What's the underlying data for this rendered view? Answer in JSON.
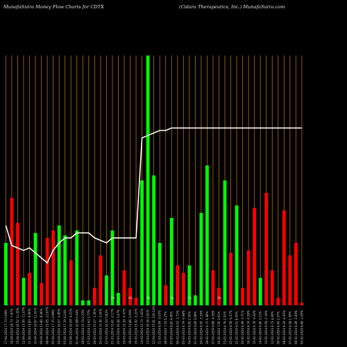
{
  "chart_data": {
    "type": "bar",
    "title_left": "MunafaSutra  Money Flow  Charts for CDTX",
    "title_right": "(Cidara Therapeutics, Inc.) MunafaSutra.com",
    "colors": {
      "up": "#00ff00",
      "down": "#ff0000",
      "grid": "#b8701a",
      "line": "#ffffff",
      "background": "#000000"
    },
    "grid": true,
    "ylim": [
      0,
      1
    ],
    "categories": [
      "17-04-2024 17.73 0.68%",
      "16-04-2024 18.73 -7.87%",
      "15-04-2024 16.52 11.35%",
      "12-04-2024 13.45 -11.97%",
      "11-04-2024 14.83 -6.90%",
      "10-04-2024 16.87 11.61%",
      "09-04-2024 13.80 -8.46%",
      "08-04-2024 15.05 -12.67%",
      "05-04-2024 17.15 3.98%",
      "04-04-2024 16.07 -5.85%",
      "03-04-2024 17.19 4.24%",
      "02-04-2024 16.09 -4.01%",
      "01-04-2024 16.88 6.44%",
      "28-03-2024 15.74 0.70%",
      "27-03-2024 15.63 3.77%",
      "26-03-2024 15.07 -1.90%",
      "25-03-2024 15.36 -3.00%",
      "22-03-2024 16.54 5.82%",
      "21-03-2024 15.61 -2.17%",
      "20-03-2024 16.46 3.47%",
      "19-03-2024 15.39 -0.47%",
      "18-03-2024 15.86 3.30%",
      "15-03-2024 15.42 -3.22%",
      "14-03-2024 15.73 -1.62%",
      "13-03-2024 16.36 2.81%",
      "12-03-2024 15.91 129.14%",
      "11-03-2024 6.94 -3.53%",
      "08-03-2024 7.19 5.27%",
      "07-03-2024 6.83 4.45%",
      "06-03-2024 6.53 -3.72%",
      "05-03-2024 6.79 -0.98%",
      "04-03-2024 6.85 2.35%",
      "01-03-2024 6.69 3.08%",
      "29-02-2024 6.50 -3.35%",
      "28-02-2024 6.72 0.48%",
      "27-02-2024 6.68 -4.59%",
      "26-02-2024 7.00 3.61%",
      "23-02-2024 6.76 2.52%",
      "22-02-2024 6.59 -4.57%",
      "21-02-2024 6.91 6.43%",
      "20-02-2024 6.49 -3.71%",
      "16-02-2024 6.74 -0.59%",
      "15-02-2024 6.78 -0.30%",
      "14-02-2024 6.80 3.21%",
      "13-02-2024 6.59 -2.16%",
      "12-02-2024 6.73 4.29%",
      "09-02-2024 6.45 2.57%",
      "08-02-2024 6.29 -4.45%",
      "07-02-2024 6.58 1.39%",
      "06-02-2024 6.49 -2.84%",
      "05-02-2024 6.68 -2.05%"
    ],
    "values": [
      0.25,
      0.43,
      0.33,
      0.11,
      0.13,
      0.29,
      0.09,
      0.27,
      0.3,
      0.32,
      0.28,
      0.18,
      0.3,
      0.02,
      0.02,
      0.07,
      0.2,
      0.12,
      0.3,
      0.05,
      0.14,
      0.07,
      0.03,
      0.5,
      1.0,
      0.52,
      0.25,
      0.08,
      0.35,
      0.16,
      0.13,
      0.16,
      0.04,
      0.37,
      0.56,
      0.14,
      0.07,
      0.5,
      0.21,
      0.4,
      0.07,
      0.22,
      0.39,
      0.11,
      0.45,
      0.14,
      0.03,
      0.38,
      0.2,
      0.25,
      0.01
    ],
    "up": [
      true,
      false,
      false,
      true,
      false,
      true,
      false,
      false,
      false,
      true,
      true,
      false,
      true,
      true,
      true,
      false,
      false,
      true,
      true,
      true,
      false,
      false,
      false,
      true,
      true,
      true,
      true,
      false,
      true,
      false,
      false,
      true,
      true,
      true,
      true,
      false,
      false,
      true,
      false,
      true,
      false,
      false,
      false,
      true,
      false,
      false,
      false,
      false,
      false,
      false,
      false
    ],
    "money_flow_line": [
      0.32,
      0.24,
      0.23,
      0.22,
      0.23,
      0.21,
      0.19,
      0.17,
      0.22,
      0.25,
      0.27,
      0.27,
      0.29,
      0.29,
      0.29,
      0.27,
      0.26,
      0.25,
      0.27,
      0.27,
      0.27,
      0.27,
      0.27,
      0.67,
      0.68,
      0.69,
      0.7,
      0.7,
      0.71,
      0.71,
      0.71,
      0.71,
      0.71,
      0.71,
      0.71,
      0.71,
      0.71,
      0.71,
      0.71,
      0.71,
      0.71,
      0.71,
      0.71,
      0.71,
      0.71,
      0.71,
      0.71,
      0.71,
      0.71,
      0.71,
      0.71
    ],
    "bar_marks": [
      "0%",
      "0%",
      "0%",
      "0%",
      "0%",
      "0%"
    ]
  }
}
